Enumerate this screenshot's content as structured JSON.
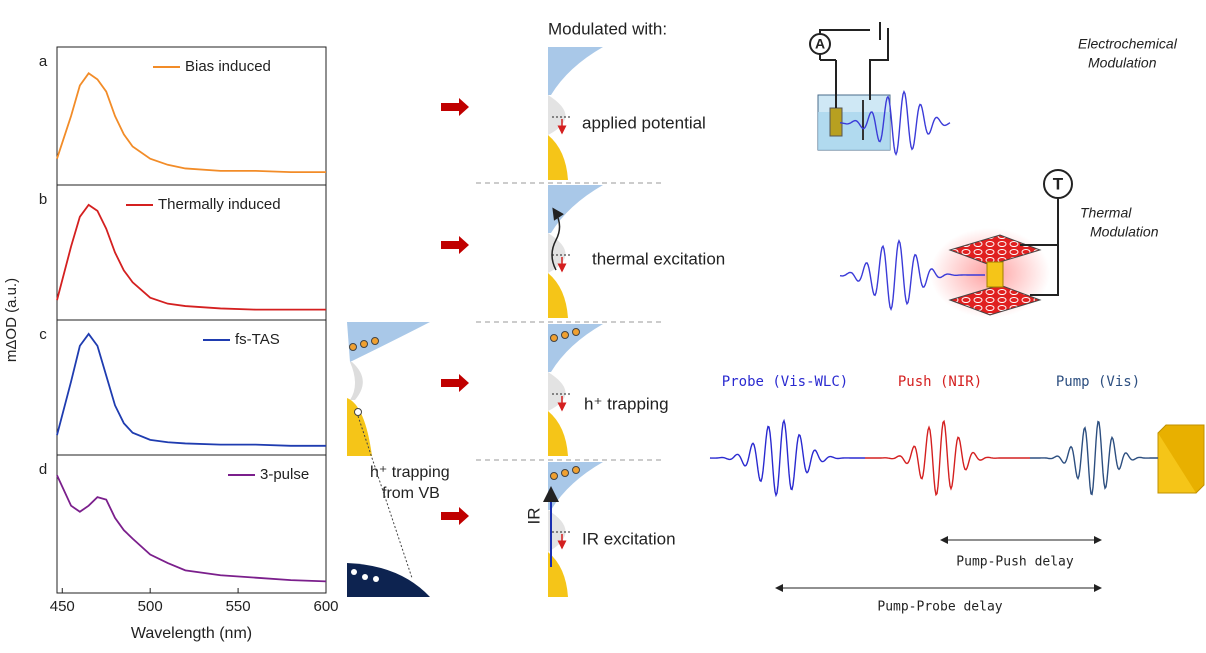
{
  "figure": {
    "ylabel": "mΔOD (a.u.)"
  },
  "chart_data": [
    {
      "type": "line",
      "panel": "a",
      "x": [
        447,
        455,
        460,
        465,
        470,
        475,
        480,
        485,
        490,
        500,
        510,
        520,
        540,
        560,
        580,
        600
      ],
      "xlim": [
        447,
        600
      ],
      "ylim": [
        0,
        1
      ],
      "series": [
        {
          "name": "Bias induced",
          "color": "#f28c28",
          "values": [
            0.15,
            0.5,
            0.75,
            0.85,
            0.8,
            0.7,
            0.5,
            0.35,
            0.25,
            0.15,
            0.1,
            0.07,
            0.05,
            0.05,
            0.04,
            0.04
          ]
        }
      ]
    },
    {
      "type": "line",
      "panel": "b",
      "x": [
        447,
        455,
        460,
        465,
        470,
        475,
        480,
        485,
        490,
        500,
        510,
        520,
        540,
        560,
        580,
        600
      ],
      "xlim": [
        447,
        600
      ],
      "ylim": [
        0,
        1
      ],
      "series": [
        {
          "name": "Thermally induced",
          "color": "#d42020",
          "values": [
            0.1,
            0.55,
            0.8,
            0.9,
            0.85,
            0.7,
            0.5,
            0.35,
            0.25,
            0.12,
            0.07,
            0.05,
            0.03,
            0.02,
            0.02,
            0.02
          ]
        }
      ]
    },
    {
      "type": "line",
      "panel": "c",
      "x": [
        447,
        455,
        460,
        465,
        470,
        475,
        480,
        485,
        490,
        500,
        510,
        520,
        540,
        560,
        580,
        600
      ],
      "xlim": [
        447,
        600
      ],
      "ylim": [
        0,
        1
      ],
      "series": [
        {
          "name": "fs-TAS",
          "color": "#1f3cb0",
          "values": [
            0.1,
            0.55,
            0.85,
            0.95,
            0.85,
            0.6,
            0.35,
            0.2,
            0.12,
            0.06,
            0.04,
            0.03,
            0.02,
            0.02,
            0.01,
            0.01
          ]
        }
      ]
    },
    {
      "type": "line",
      "panel": "d",
      "x": [
        447,
        455,
        460,
        465,
        470,
        475,
        480,
        485,
        490,
        500,
        510,
        520,
        540,
        560,
        580,
        600
      ],
      "xlim": [
        447,
        600
      ],
      "ylim": [
        0,
        1
      ],
      "xlabel": "Wavelength (nm)",
      "xticks": [
        450,
        500,
        550,
        600
      ],
      "series": [
        {
          "name": "3-pulse",
          "color": "#7b1f8c",
          "values": [
            0.9,
            0.65,
            0.6,
            0.65,
            0.72,
            0.7,
            0.55,
            0.45,
            0.38,
            0.25,
            0.18,
            0.12,
            0.08,
            0.06,
            0.04,
            0.03
          ]
        }
      ]
    }
  ],
  "diagram": {
    "heading": "Modulated with:",
    "rows": [
      "applied potential",
      "thermal excitation",
      "h⁺ trapping",
      "IR excitation"
    ],
    "ir_label": "IR",
    "vb_trapping": [
      "h⁺ trapping",
      "from VB"
    ],
    "electrochemical": {
      "meter": "A",
      "caption": [
        "Electrochemical",
        "Modulation"
      ]
    },
    "thermal": {
      "meter": "T",
      "caption": [
        "Thermal",
        "Modulation"
      ]
    },
    "pulses": [
      "Probe (Vis-WLC)",
      "Push (NIR)",
      "Pump (Vis)"
    ],
    "delays": [
      "Pump-Push delay",
      "Pump-Probe delay"
    ]
  }
}
